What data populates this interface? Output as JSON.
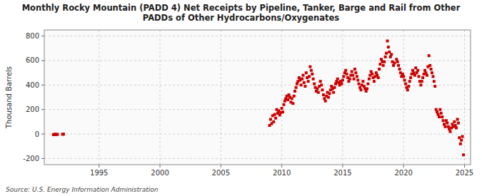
{
  "chart_data": {
    "type": "scatter",
    "title": "Monthly Rocky Mountain (PADD 4) Net Receipts by Pipeline, Tanker, Barge and Rail from Other\nPADDs of Other Hydrocarbons/Oxygenates",
    "y_label": "Thousand Barrels",
    "annotations": [
      "Source: U.S. Energy Information Administration"
    ],
    "color": "#cc0000",
    "marker": "square",
    "grid": true,
    "xlim": [
      1990.5,
      2025.5
    ],
    "ylim": [
      -250,
      850
    ],
    "xticks": [
      1995,
      2000,
      2005,
      2010,
      2015,
      2020,
      2025
    ],
    "yticks": [
      -200,
      0,
      200,
      400,
      600,
      800
    ],
    "x": [
      1991.25,
      1991.33,
      1991.42,
      1991.5,
      1991.58,
      1992.0,
      1992.08,
      2009.0,
      2009.08,
      2009.17,
      2009.25,
      2009.33,
      2009.42,
      2009.5,
      2009.58,
      2009.67,
      2009.75,
      2009.83,
      2009.92,
      2010.0,
      2010.08,
      2010.17,
      2010.25,
      2010.33,
      2010.42,
      2010.5,
      2010.58,
      2010.67,
      2010.75,
      2010.83,
      2010.92,
      2011.0,
      2011.08,
      2011.17,
      2011.25,
      2011.33,
      2011.42,
      2011.5,
      2011.58,
      2011.67,
      2011.75,
      2011.83,
      2011.92,
      2012.0,
      2012.08,
      2012.17,
      2012.25,
      2012.33,
      2012.42,
      2012.5,
      2012.58,
      2012.67,
      2012.75,
      2012.83,
      2012.92,
      2013.0,
      2013.08,
      2013.17,
      2013.25,
      2013.33,
      2013.42,
      2013.5,
      2013.58,
      2013.67,
      2013.75,
      2013.83,
      2013.92,
      2014.0,
      2014.08,
      2014.17,
      2014.25,
      2014.33,
      2014.42,
      2014.5,
      2014.58,
      2014.67,
      2014.75,
      2014.83,
      2014.92,
      2015.0,
      2015.08,
      2015.17,
      2015.25,
      2015.33,
      2015.42,
      2015.5,
      2015.58,
      2015.67,
      2015.75,
      2015.83,
      2015.92,
      2016.0,
      2016.08,
      2016.17,
      2016.25,
      2016.33,
      2016.42,
      2016.5,
      2016.58,
      2016.67,
      2016.75,
      2016.83,
      2016.92,
      2017.0,
      2017.08,
      2017.17,
      2017.25,
      2017.33,
      2017.42,
      2017.5,
      2017.58,
      2017.67,
      2017.75,
      2017.83,
      2017.92,
      2018.0,
      2018.08,
      2018.17,
      2018.25,
      2018.33,
      2018.42,
      2018.5,
      2018.58,
      2018.67,
      2018.75,
      2018.83,
      2018.92,
      2019.0,
      2019.08,
      2019.17,
      2019.25,
      2019.42,
      2019.5,
      2019.58,
      2019.67,
      2019.75,
      2019.83,
      2019.92,
      2020.0,
      2020.08,
      2020.17,
      2020.25,
      2020.33,
      2020.42,
      2020.5,
      2020.58,
      2020.67,
      2020.75,
      2020.83,
      2020.92,
      2021.0,
      2021.08,
      2021.17,
      2021.25,
      2021.33,
      2021.42,
      2021.5,
      2021.58,
      2021.67,
      2021.75,
      2021.83,
      2021.92,
      2022.0,
      2022.08,
      2022.17,
      2022.25,
      2022.33,
      2022.42,
      2022.5,
      2022.58,
      2022.67,
      2022.75,
      2022.83,
      2022.92,
      2023.0,
      2023.08,
      2023.17,
      2023.25,
      2023.33,
      2023.42,
      2023.5,
      2023.58,
      2023.67,
      2023.75,
      2023.83,
      2023.92,
      2024.0,
      2024.08,
      2024.17,
      2024.25,
      2024.33,
      2024.42,
      2024.5,
      2024.58,
      2024.67,
      2024.75,
      2024.83,
      2024.92
    ],
    "values": [
      -5,
      -3,
      -2,
      -4,
      -3,
      -2,
      -1,
      70,
      120,
      85,
      150,
      100,
      160,
      130,
      200,
      170,
      190,
      155,
      175,
      210,
      180,
      240,
      270,
      290,
      310,
      280,
      320,
      300,
      260,
      290,
      250,
      310,
      350,
      380,
      410,
      430,
      460,
      440,
      400,
      450,
      480,
      420,
      390,
      500,
      460,
      430,
      470,
      550,
      520,
      490,
      450,
      410,
      380,
      350,
      370,
      340,
      390,
      430,
      400,
      360,
      320,
      290,
      270,
      310,
      340,
      300,
      330,
      360,
      390,
      370,
      340,
      380,
      410,
      430,
      450,
      420,
      400,
      430,
      410,
      440,
      470,
      500,
      520,
      490,
      460,
      430,
      450,
      480,
      510,
      480,
      450,
      530,
      500,
      470,
      440,
      410,
      380,
      360,
      400,
      430,
      390,
      370,
      350,
      370,
      410,
      450,
      480,
      510,
      490,
      460,
      430,
      470,
      500,
      480,
      460,
      530,
      570,
      610,
      590,
      560,
      590,
      630,
      660,
      760,
      710,
      670,
      630,
      650,
      590,
      560,
      580,
      610,
      590,
      560,
      530,
      500,
      470,
      490,
      470,
      440,
      410,
      380,
      360,
      390,
      430,
      460,
      490,
      520,
      500,
      480,
      540,
      500,
      520,
      470,
      430,
      400,
      430,
      460,
      490,
      520,
      500,
      480,
      550,
      640,
      560,
      530,
      500,
      470,
      430,
      390,
      200,
      180,
      160,
      140,
      200,
      170,
      140,
      110,
      80,
      60,
      110,
      90,
      60,
      40,
      20,
      50,
      80,
      60,
      100,
      70,
      50,
      120,
      90,
      -30,
      -80,
      -50,
      -20,
      -170
    ]
  }
}
